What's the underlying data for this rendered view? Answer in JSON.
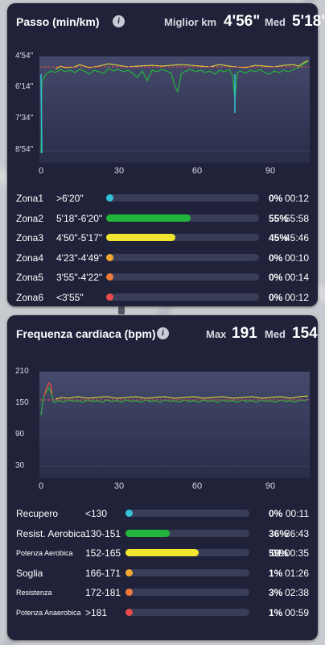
{
  "pace": {
    "title": "Passo (min/km)",
    "best_label": "Miglior km",
    "best_value": "4'56\"",
    "avg_label": "Med",
    "avg_value": "5'18\"",
    "y_ticks": [
      "4'54\"",
      "6'14\"",
      "7'34\"",
      "8'54\""
    ],
    "x_ticks": [
      "0",
      "30",
      "60",
      "90"
    ],
    "zones": [
      {
        "name": "Zona1",
        "range": ">6'20\"",
        "percent": "0%",
        "time": "00:12",
        "fraction": 0.0,
        "color": "#33c2d6"
      },
      {
        "name": "Zona2",
        "range": "5'18\"-6'20\"",
        "percent": "55%",
        "time": "55:58",
        "fraction": 0.55,
        "color": "#22b53b"
      },
      {
        "name": "Zona3",
        "range": "4'50\"-5'17\"",
        "percent": "45%",
        "time": "45:46",
        "fraction": 0.45,
        "color": "#f2e530"
      },
      {
        "name": "Zona4",
        "range": "4'23\"-4'49\"",
        "percent": "0%",
        "time": "00:10",
        "fraction": 0.0,
        "color": "#f0a830"
      },
      {
        "name": "Zona5",
        "range": "3'55\"-4'22\"",
        "percent": "0%",
        "time": "00:14",
        "fraction": 0.0,
        "color": "#f07a3a"
      },
      {
        "name": "Zona6",
        "range": "<3'55\"",
        "percent": "0%",
        "time": "00:12",
        "fraction": 0.0,
        "color": "#e84a4a"
      }
    ]
  },
  "heart_rate": {
    "title": "Frequenza cardiaca (bpm)",
    "max_label": "Max",
    "max_value": "191",
    "avg_label": "Med",
    "avg_value": "154",
    "y_ticks": [
      "210",
      "150",
      "90",
      "30"
    ],
    "x_ticks": [
      "0",
      "30",
      "60",
      "90"
    ],
    "zones": [
      {
        "name": "Recupero",
        "range": "<130",
        "percent": "0%",
        "time": "00:11",
        "fraction": 0.0,
        "color": "#33c2d6",
        "small": false
      },
      {
        "name": "Resist. Aerobica",
        "range": "130-151",
        "percent": "36%",
        "time": "36:43",
        "fraction": 0.36,
        "color": "#22b53b",
        "small": false
      },
      {
        "name": "Potenza Aerobica",
        "range": "152-165",
        "percent": "59%",
        "time": "01:00:35",
        "fraction": 0.59,
        "color": "#f2e530",
        "small": true
      },
      {
        "name": "Soglia",
        "range": "166-171",
        "percent": "1%",
        "time": "01:26",
        "fraction": 0.01,
        "color": "#f0a830",
        "small": false
      },
      {
        "name": "Resistenza",
        "range": "172-181",
        "percent": "3%",
        "time": "02:38",
        "fraction": 0.03,
        "color": "#f07a3a",
        "small": true
      },
      {
        "name": "Potenza Anaerobica",
        "range": ">181",
        "percent": "1%",
        "time": "00:59",
        "fraction": 0.01,
        "color": "#e84a4a",
        "small": true
      }
    ]
  }
}
